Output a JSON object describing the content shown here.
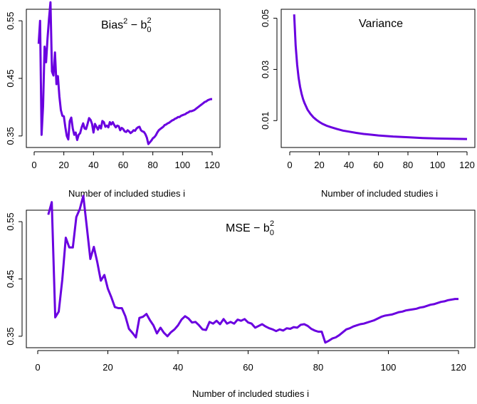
{
  "chart_data": [
    {
      "type": "line",
      "title_main": "Bias",
      "title_sup": "2",
      "title_mid": " − b",
      "title_sub": "0",
      "title_sup2": "2",
      "xlabel": "Number of included studies i",
      "ylabel": "",
      "xlim": [
        0,
        120
      ],
      "ylim": [
        0.33,
        0.57
      ],
      "xticks": [
        "0",
        "20",
        "40",
        "60",
        "80",
        "100",
        "120"
      ],
      "yticks": [
        "0.35",
        "0.45",
        "0.55"
      ],
      "color": "#6a00e0",
      "series": [
        {
          "x": [
            3,
            4,
            5,
            6,
            7,
            8,
            9,
            10,
            11,
            12,
            13,
            14,
            15,
            16,
            17,
            18,
            19,
            20,
            21,
            22,
            23,
            24,
            25,
            26,
            27,
            28,
            29,
            30,
            31,
            32,
            33,
            34,
            35,
            36,
            37,
            38,
            39,
            40,
            41,
            42,
            43,
            44,
            45,
            46,
            47,
            48,
            49,
            50,
            51,
            52,
            53,
            54,
            55,
            56,
            57,
            58,
            59,
            60,
            61,
            62,
            63,
            64,
            65,
            66,
            67,
            68,
            69,
            70,
            71,
            72,
            73,
            74,
            75,
            76,
            77,
            78,
            79,
            80,
            81,
            82,
            83,
            84,
            85,
            86,
            87,
            88,
            89,
            90,
            91,
            92,
            93,
            94,
            95,
            96,
            97,
            98,
            99,
            100,
            101,
            102,
            103,
            104,
            105,
            106,
            107,
            108,
            109,
            110,
            111,
            112,
            113,
            114,
            115,
            116,
            117,
            118,
            119,
            120
          ],
          "values": [
            0.51,
            0.55,
            0.352,
            0.402,
            0.505,
            0.478,
            0.52,
            0.553,
            0.582,
            0.462,
            0.455,
            0.495,
            0.44,
            0.454,
            0.419,
            0.395,
            0.385,
            0.384,
            0.365,
            0.35,
            0.344,
            0.376,
            0.382,
            0.363,
            0.352,
            0.356,
            0.343,
            0.352,
            0.355,
            0.365,
            0.372,
            0.363,
            0.362,
            0.371,
            0.381,
            0.378,
            0.371,
            0.356,
            0.371,
            0.366,
            0.361,
            0.368,
            0.363,
            0.376,
            0.374,
            0.366,
            0.368,
            0.365,
            0.374,
            0.37,
            0.374,
            0.369,
            0.365,
            0.368,
            0.367,
            0.36,
            0.364,
            0.362,
            0.358,
            0.357,
            0.36,
            0.358,
            0.355,
            0.357,
            0.36,
            0.359,
            0.363,
            0.365,
            0.366,
            0.36,
            0.358,
            0.357,
            0.353,
            0.347,
            0.336,
            0.339,
            0.342,
            0.346,
            0.348,
            0.351,
            0.356,
            0.36,
            0.362,
            0.364,
            0.366,
            0.369,
            0.37,
            0.372,
            0.373,
            0.375,
            0.377,
            0.378,
            0.38,
            0.381,
            0.383,
            0.383,
            0.385,
            0.386,
            0.387,
            0.388,
            0.39,
            0.391,
            0.393,
            0.393,
            0.394,
            0.395,
            0.397,
            0.399,
            0.401,
            0.403,
            0.405,
            0.407,
            0.409,
            0.41,
            0.412,
            0.413,
            0.414,
            0.414
          ]
        }
      ]
    },
    {
      "type": "line",
      "title": "Variance",
      "xlabel": "Number of included studies i",
      "ylabel": "",
      "xlim": [
        0,
        120
      ],
      "ylim": [
        -0.0005,
        0.0535
      ],
      "xticks": [
        "0",
        "20",
        "40",
        "60",
        "80",
        "100",
        "120"
      ],
      "yticks": [
        "0.01",
        "0.03",
        "0.05"
      ],
      "color": "#6a00e0",
      "series": [
        {
          "x": [
            3,
            4,
            5,
            6,
            7,
            8,
            9,
            10,
            12,
            14,
            16,
            18,
            20,
            22,
            25,
            28,
            32,
            36,
            40,
            45,
            50,
            55,
            60,
            70,
            80,
            90,
            100,
            110,
            120
          ],
          "values": [
            0.0515,
            0.0392,
            0.0318,
            0.0268,
            0.0232,
            0.0205,
            0.0184,
            0.0168,
            0.0143,
            0.0126,
            0.0113,
            0.0103,
            0.0095,
            0.0088,
            0.008,
            0.0074,
            0.0067,
            0.0061,
            0.0057,
            0.0052,
            0.0048,
            0.0045,
            0.0042,
            0.0038,
            0.0035,
            0.0032,
            0.003,
            0.0029,
            0.0028
          ]
        }
      ]
    },
    {
      "type": "line",
      "title_main": "MSE − b",
      "title_sub": "0",
      "title_sup2": "2",
      "xlabel": "Number of included studies i",
      "ylabel": "",
      "xlim": [
        0,
        120
      ],
      "ylim": [
        0.33,
        0.57
      ],
      "xticks": [
        "0",
        "20",
        "40",
        "60",
        "80",
        "100",
        "120"
      ],
      "yticks": [
        "0.35",
        "0.45",
        "0.55"
      ],
      "color": "#6a00e0",
      "series": [
        {
          "x": [
            3,
            4,
            5,
            6,
            7,
            8,
            9,
            10,
            11,
            12,
            13,
            14,
            15,
            16,
            17,
            18,
            19,
            20,
            21,
            22,
            23,
            24,
            25,
            26,
            27,
            28,
            29,
            30,
            31,
            32,
            33,
            34,
            35,
            36,
            37,
            38,
            39,
            40,
            41,
            42,
            43,
            44,
            45,
            46,
            47,
            48,
            49,
            50,
            51,
            52,
            53,
            54,
            55,
            56,
            57,
            58,
            59,
            60,
            61,
            62,
            63,
            64,
            65,
            66,
            67,
            68,
            69,
            70,
            71,
            72,
            73,
            74,
            75,
            76,
            77,
            78,
            79,
            80,
            81,
            82,
            83,
            84,
            85,
            86,
            87,
            88,
            89,
            90,
            91,
            92,
            93,
            94,
            95,
            96,
            97,
            98,
            99,
            100,
            101,
            102,
            103,
            104,
            105,
            106,
            107,
            108,
            109,
            110,
            111,
            112,
            113,
            114,
            115,
            116,
            117,
            118,
            119,
            120
          ],
          "values": [
            0.562,
            0.584,
            0.383,
            0.393,
            0.449,
            0.522,
            0.505,
            0.505,
            0.558,
            0.572,
            0.595,
            0.54,
            0.485,
            0.506,
            0.479,
            0.447,
            0.457,
            0.433,
            0.418,
            0.401,
            0.399,
            0.399,
            0.385,
            0.363,
            0.356,
            0.348,
            0.382,
            0.384,
            0.389,
            0.378,
            0.369,
            0.355,
            0.365,
            0.356,
            0.35,
            0.357,
            0.362,
            0.369,
            0.379,
            0.385,
            0.381,
            0.374,
            0.375,
            0.369,
            0.362,
            0.361,
            0.375,
            0.372,
            0.377,
            0.371,
            0.38,
            0.372,
            0.375,
            0.372,
            0.379,
            0.377,
            0.38,
            0.374,
            0.372,
            0.365,
            0.368,
            0.371,
            0.367,
            0.364,
            0.362,
            0.359,
            0.362,
            0.36,
            0.364,
            0.363,
            0.366,
            0.365,
            0.37,
            0.371,
            0.368,
            0.363,
            0.36,
            0.358,
            0.358,
            0.339,
            0.342,
            0.346,
            0.348,
            0.352,
            0.357,
            0.362,
            0.364,
            0.367,
            0.369,
            0.371,
            0.372,
            0.374,
            0.376,
            0.378,
            0.381,
            0.384,
            0.386,
            0.387,
            0.388,
            0.39,
            0.392,
            0.393,
            0.395,
            0.396,
            0.397,
            0.398,
            0.4,
            0.401,
            0.403,
            0.405,
            0.406,
            0.408,
            0.41,
            0.411,
            0.413,
            0.414,
            0.415,
            0.415
          ]
        }
      ]
    }
  ]
}
